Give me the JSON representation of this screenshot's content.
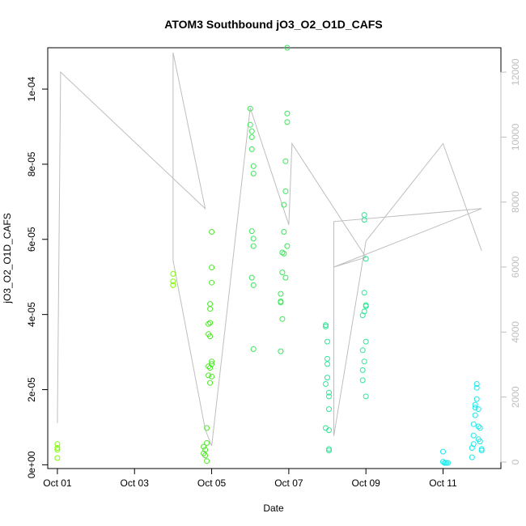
{
  "chart_data": {
    "type": "scatter",
    "title": "ATOM3 Southbound jO3_O2_O1D_CAFS",
    "xlabel": "Date",
    "ylabel": "jO3_O2_O1D_CAFS",
    "x_ticks": [
      "Oct 01",
      "Oct 03",
      "Oct 05",
      "Oct 07",
      "Oct 09",
      "Oct 11"
    ],
    "xlim": [
      "2017-09-30T18:00",
      "2017-10-12T12:00"
    ],
    "ylim": [
      -1e-06,
      0.000111
    ],
    "y_ticks": [
      "0e+00",
      "2e-05",
      "4e-05",
      "6e-05",
      "8e-05",
      "1e-04"
    ],
    "y_tick_values": [
      0,
      2e-05,
      4e-05,
      6e-05,
      8e-05,
      0.0001
    ],
    "y2_ticks": [
      "0",
      "2000",
      "4000",
      "6000",
      "8000",
      "10000",
      "12000"
    ],
    "y2_tick_values": [
      0,
      2000,
      4000,
      6000,
      8000,
      10000,
      12000
    ],
    "y2lim": [
      -200,
      12750
    ],
    "grid": false,
    "colors": {
      "altitude_line": "#bebebe",
      "axis": "#000000",
      "box": "#000000"
    },
    "series": [
      {
        "color": "#7cfc00",
        "points": [
          [
            "2017-10-01T00:00",
            4.5e-06
          ],
          [
            "2017-10-01T00:00",
            5.5e-06
          ],
          [
            "2017-10-01T00:00",
            4e-06
          ],
          [
            "2017-10-01T00:00",
            1.8e-06
          ],
          [
            "2017-10-04T00:00",
            5.08e-05
          ],
          [
            "2017-10-04T00:00",
            4.88e-05
          ],
          [
            "2017-10-04T00:00",
            4.78e-05
          ]
        ]
      },
      {
        "color": "#4ee62a",
        "points": [
          [
            "2017-10-04T19:00",
            3e-06
          ],
          [
            "2017-10-04T19:00",
            4.8e-06
          ],
          [
            "2017-10-04T20:00",
            4e-06
          ],
          [
            "2017-10-04T20:00",
            2.5e-06
          ],
          [
            "2017-10-04T21:00",
            9.8e-06
          ],
          [
            "2017-10-04T21:00",
            1e-06
          ],
          [
            "2017-10-04T21:00",
            5.8e-06
          ],
          [
            "2017-10-04T22:00",
            2.62e-05
          ],
          [
            "2017-10-04T22:00",
            3.48e-05
          ],
          [
            "2017-10-04T22:00",
            3.75e-05
          ],
          [
            "2017-10-04T22:00",
            2.38e-05
          ],
          [
            "2017-10-04T23:00",
            4.15e-05
          ],
          [
            "2017-10-04T23:00",
            4.28e-05
          ],
          [
            "2017-10-04T23:00",
            3.42e-05
          ],
          [
            "2017-10-04T23:00",
            3.78e-05
          ],
          [
            "2017-10-04T23:00",
            2.18e-05
          ],
          [
            "2017-10-04T23:00",
            2.58e-05
          ],
          [
            "2017-10-05T00:00",
            4.85e-05
          ],
          [
            "2017-10-05T00:00",
            5.25e-05
          ],
          [
            "2017-10-05T00:00",
            6.2e-05
          ],
          [
            "2017-10-05T00:00",
            2.75e-05
          ],
          [
            "2017-10-05T00:00",
            2.68e-05
          ],
          [
            "2017-10-05T00:00",
            2.35e-05
          ]
        ]
      },
      {
        "color": "#3ee65a",
        "points": [
          [
            "2017-10-06T00:00",
            9.48e-05
          ],
          [
            "2017-10-06T00:00",
            9.05e-05
          ],
          [
            "2017-10-06T01:00",
            8.88e-05
          ],
          [
            "2017-10-06T01:00",
            8.72e-05
          ],
          [
            "2017-10-06T01:00",
            8.4e-05
          ],
          [
            "2017-10-06T02:00",
            7.95e-05
          ],
          [
            "2017-10-06T02:00",
            7.75e-05
          ],
          [
            "2017-10-06T01:00",
            6.22e-05
          ],
          [
            "2017-10-06T02:00",
            6.02e-05
          ],
          [
            "2017-10-06T02:00",
            5.82e-05
          ],
          [
            "2017-10-06T01:00",
            4.98e-05
          ],
          [
            "2017-10-06T02:00",
            4.78e-05
          ],
          [
            "2017-10-06T02:00",
            3.08e-05
          ],
          [
            "2017-10-06T19:00",
            4.35e-05
          ],
          [
            "2017-10-06T19:00",
            4.55e-05
          ],
          [
            "2017-10-06T19:00",
            4.32e-05
          ],
          [
            "2017-10-06T19:00",
            3.02e-05
          ],
          [
            "2017-10-06T20:00",
            5.12e-05
          ],
          [
            "2017-10-06T20:00",
            5.65e-05
          ],
          [
            "2017-10-06T20:00",
            3.88e-05
          ],
          [
            "2017-10-06T21:00",
            5.62e-05
          ],
          [
            "2017-10-06T21:00",
            6.2e-05
          ],
          [
            "2017-10-06T21:00",
            6.92e-05
          ],
          [
            "2017-10-06T22:00",
            7.28e-05
          ],
          [
            "2017-10-06T22:00",
            8.08e-05
          ],
          [
            "2017-10-06T22:00",
            4.98e-05
          ],
          [
            "2017-10-06T23:00",
            5.82e-05
          ],
          [
            "2017-10-06T23:00",
            9.12e-05
          ],
          [
            "2017-10-06T23:00",
            9.35e-05
          ],
          [
            "2017-10-06T23:00",
            0.000111
          ]
        ]
      },
      {
        "color": "#2ee696",
        "points": [
          [
            "2017-10-07T23:00",
            3.72e-05
          ],
          [
            "2017-10-07T23:00",
            3.68e-05
          ],
          [
            "2017-10-07T23:00",
            2.15e-05
          ],
          [
            "2017-10-07T23:00",
            9.8e-06
          ],
          [
            "2017-10-08T00:00",
            3.28e-05
          ],
          [
            "2017-10-08T00:00",
            2.82e-05
          ],
          [
            "2017-10-08T00:00",
            2.68e-05
          ],
          [
            "2017-10-08T00:00",
            2.32e-05
          ],
          [
            "2017-10-08T01:00",
            1.92e-05
          ],
          [
            "2017-10-08T01:00",
            1.82e-05
          ],
          [
            "2017-10-08T01:00",
            1.48e-05
          ],
          [
            "2017-10-08T01:00",
            4.2e-06
          ],
          [
            "2017-10-08T01:00",
            3.8e-06
          ],
          [
            "2017-10-08T01:00",
            9.2e-06
          ],
          [
            "2017-10-08T22:00",
            3.05e-05
          ],
          [
            "2017-10-08T22:00",
            2.52e-05
          ],
          [
            "2017-10-08T22:00",
            2.25e-05
          ],
          [
            "2017-10-08T22:00",
            3.98e-05
          ],
          [
            "2017-10-08T23:00",
            4.58e-05
          ],
          [
            "2017-10-08T23:00",
            4.08e-05
          ],
          [
            "2017-10-08T23:00",
            2.75e-05
          ],
          [
            "2017-10-09T00:00",
            4.25e-05
          ],
          [
            "2017-10-09T00:00",
            4.22e-05
          ],
          [
            "2017-10-09T00:00",
            3.28e-05
          ],
          [
            "2017-10-09T00:00",
            1.82e-05
          ],
          [
            "2017-10-08T23:00",
            6.52e-05
          ],
          [
            "2017-10-08T23:00",
            6.65e-05
          ],
          [
            "2017-10-09T00:00",
            5.48e-05
          ]
        ]
      },
      {
        "color": "#1ee8e8",
        "points": [
          [
            "2017-10-11T00:00",
            3.5e-06
          ],
          [
            "2017-10-11T00:00",
            8e-07
          ],
          [
            "2017-10-11T01:00",
            5e-07
          ],
          [
            "2017-10-11T01:00",
            5e-07
          ],
          [
            "2017-10-11T02:00",
            5e-07
          ],
          [
            "2017-10-11T03:00",
            5e-07
          ],
          [
            "2017-10-11T18:00",
            2e-06
          ],
          [
            "2017-10-11T18:00",
            4.5e-06
          ],
          [
            "2017-10-11T19:00",
            5.5e-06
          ],
          [
            "2017-10-11T19:00",
            7.8e-06
          ],
          [
            "2017-10-11T19:00",
            1.08e-05
          ],
          [
            "2017-10-11T20:00",
            1.32e-05
          ],
          [
            "2017-10-11T20:00",
            1.6e-05
          ],
          [
            "2017-10-11T20:00",
            1.52e-05
          ],
          [
            "2017-10-11T21:00",
            2.05e-05
          ],
          [
            "2017-10-11T21:00",
            2.15e-05
          ],
          [
            "2017-10-11T21:00",
            1.75e-05
          ],
          [
            "2017-10-11T22:00",
            1.48e-05
          ],
          [
            "2017-10-11T22:00",
            1.02e-05
          ],
          [
            "2017-10-11T22:00",
            6.8e-06
          ],
          [
            "2017-10-11T23:00",
            9.8e-06
          ],
          [
            "2017-10-11T23:00",
            6.2e-06
          ],
          [
            "2017-10-12T00:00",
            4.2e-06
          ],
          [
            "2017-10-12T00:00",
            3.8e-06
          ]
        ]
      }
    ],
    "altitude_series": {
      "color": "#bebebe",
      "points": [
        [
          "2017-10-01T00:00",
          1200
        ],
        [
          "2017-10-01T02:00",
          12000
        ],
        [
          "2017-10-04T20:00",
          7800
        ],
        [
          "2017-10-04T00:00",
          12600
        ],
        [
          "2017-10-04T00:00",
          6200
        ],
        [
          "2017-10-04T20:00",
          1000
        ],
        [
          "2017-10-05T00:00",
          500
        ],
        [
          "2017-10-06T00:00",
          10900
        ],
        [
          "2017-10-07T00:00",
          7300
        ],
        [
          "2017-10-07T02:00",
          9800
        ],
        [
          "2017-10-09T00:00",
          6300
        ],
        [
          "2017-10-08T04:00",
          6000
        ],
        [
          "2017-10-12T00:00",
          7800
        ],
        [
          "2017-10-08T04:00",
          7400
        ],
        [
          "2017-10-08T04:00",
          800
        ],
        [
          "2017-10-09T00:00",
          6800
        ],
        [
          "2017-10-11T00:00",
          9800
        ],
        [
          "2017-10-12T00:00",
          6500
        ]
      ]
    }
  }
}
